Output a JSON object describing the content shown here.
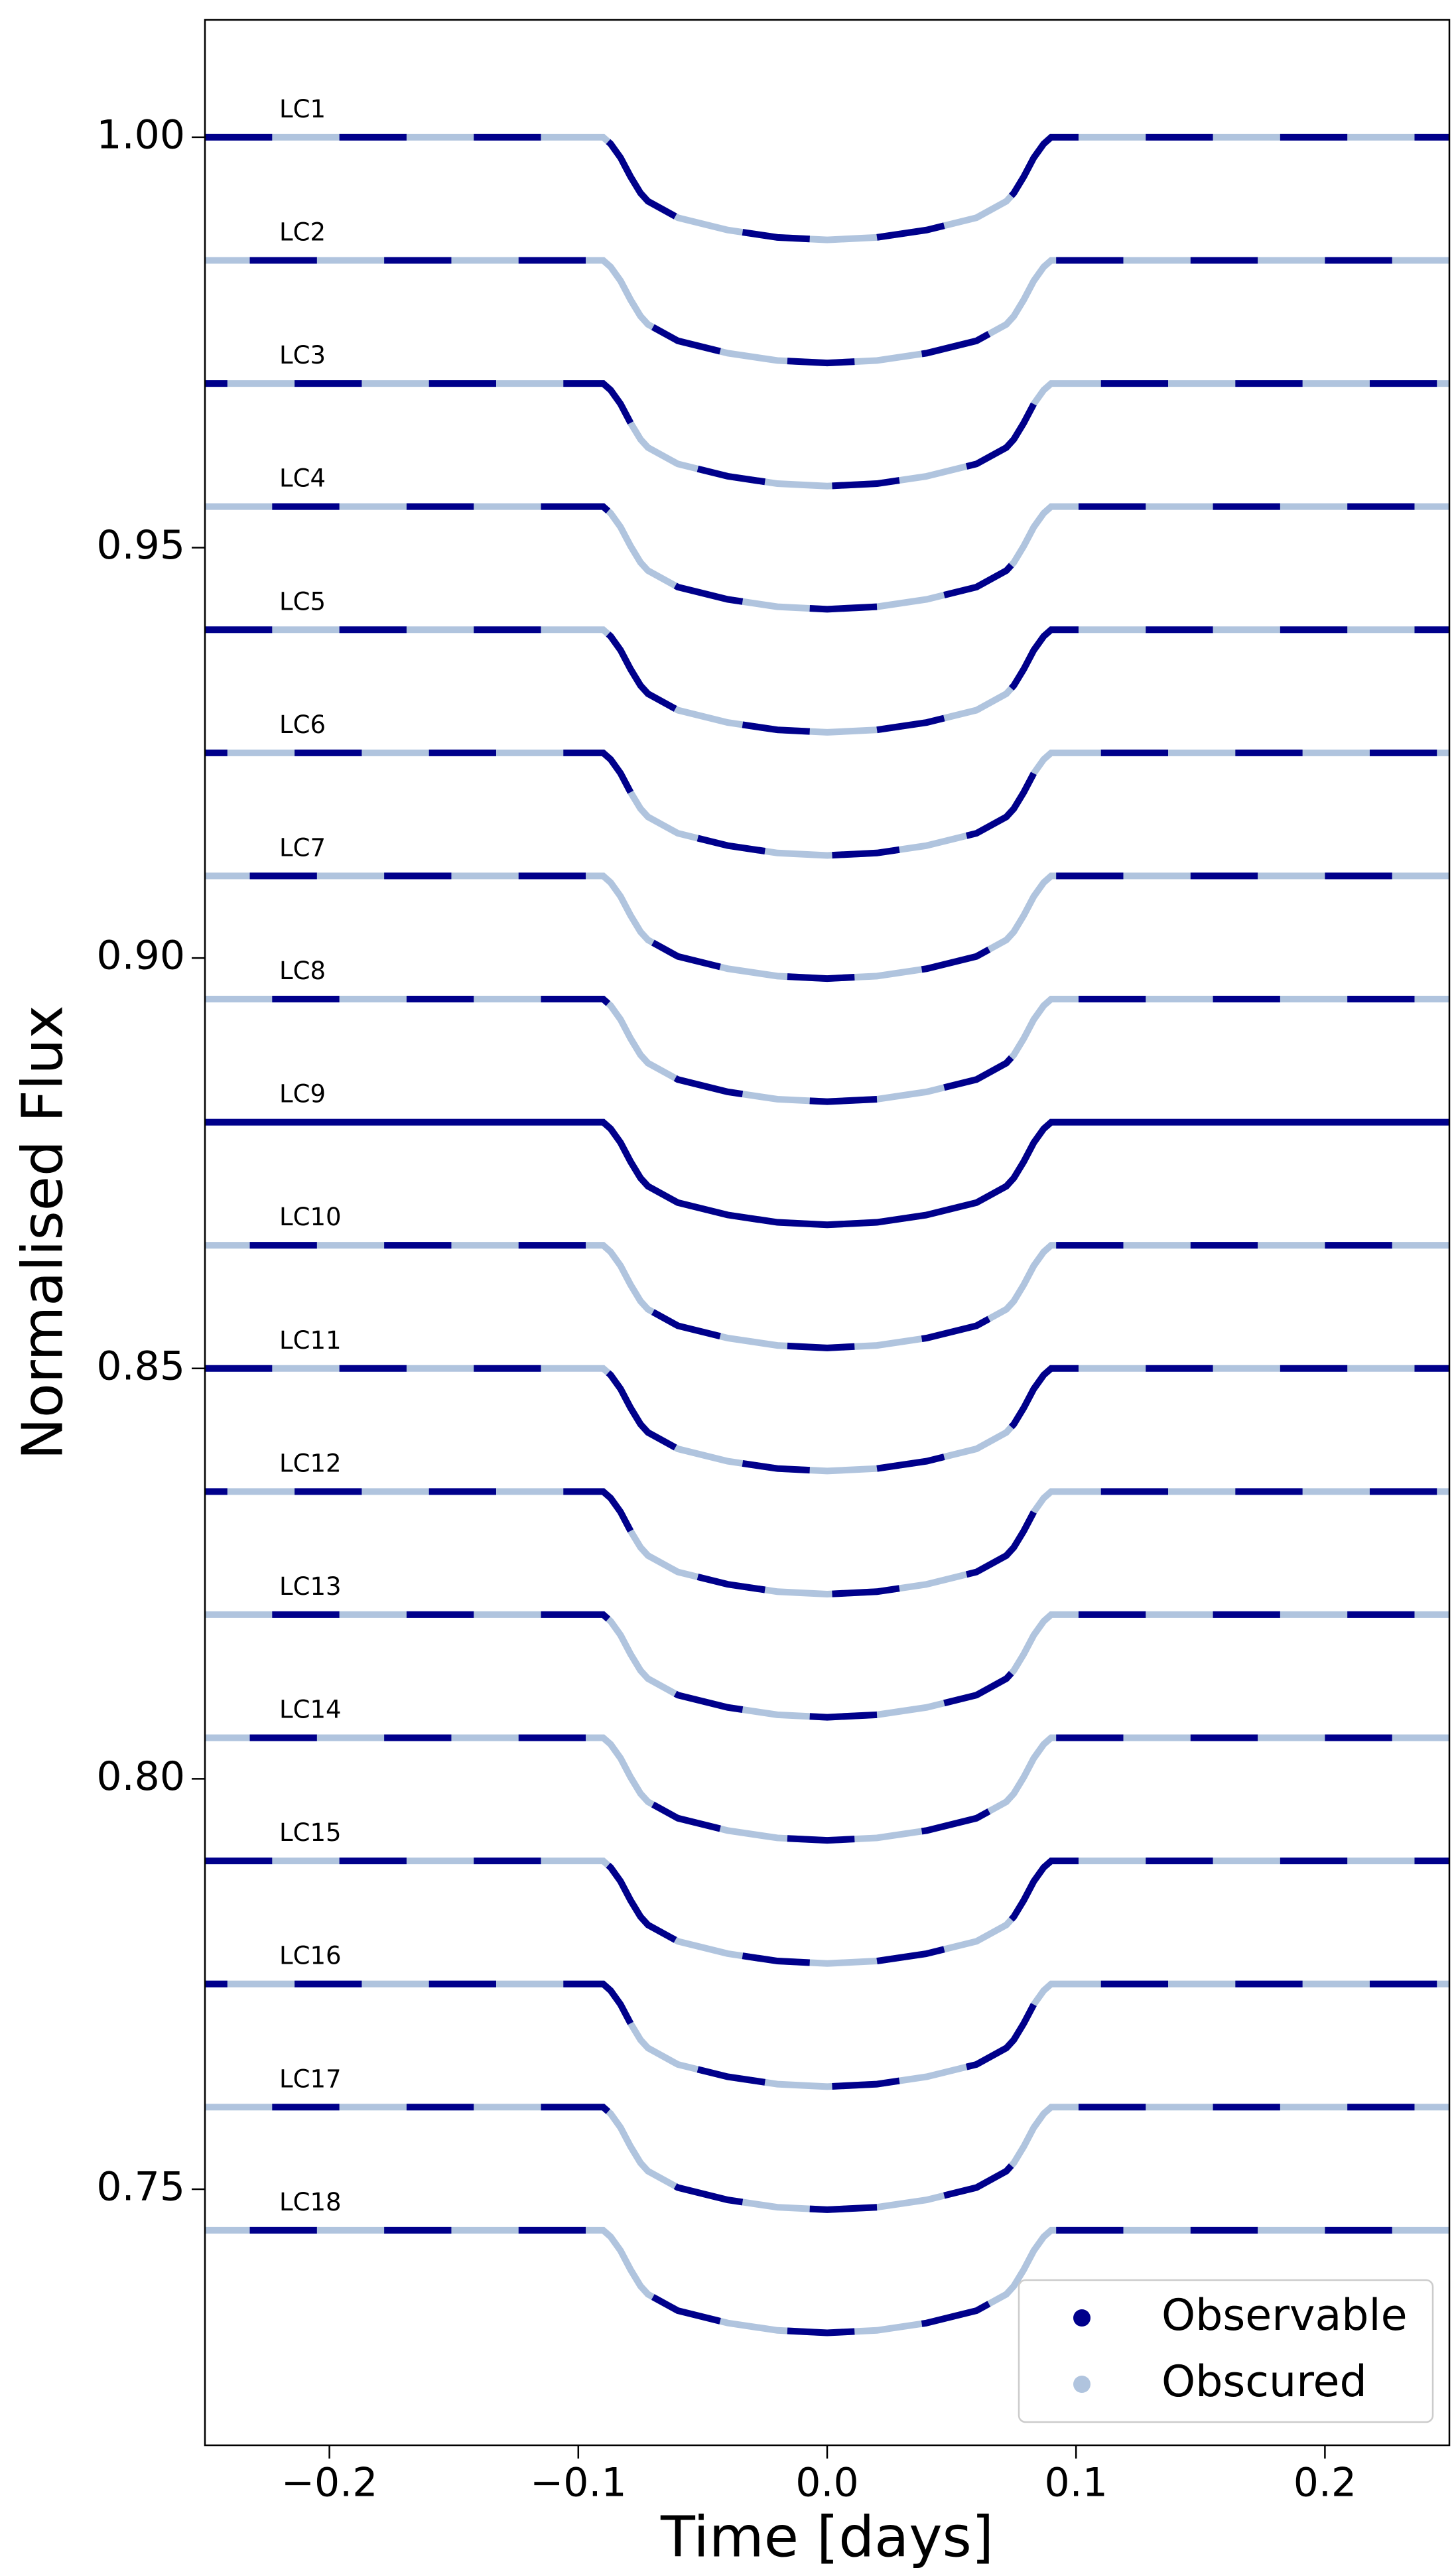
{
  "chart_data": {
    "type": "line",
    "xlabel": "Time [days]",
    "ylabel": "Normalised Flux",
    "xlim": [
      -0.25,
      0.25
    ],
    "ylim": [
      0.7188,
      1.0143
    ],
    "xticks": [
      {
        "value": -0.2,
        "label": "−0.2"
      },
      {
        "value": -0.1,
        "label": "−0.1"
      },
      {
        "value": 0.0,
        "label": "0.0"
      },
      0.1,
      0.2
    ],
    "yticks": [
      0.75,
      {
        "value": 0.8,
        "label": "0.80"
      },
      0.85,
      {
        "value": 0.9,
        "label": "0.90"
      },
      0.95,
      {
        "value": 1.0,
        "label": "1.00"
      }
    ],
    "legend": {
      "position": "lower right",
      "entries": [
        {
          "name": "Observable",
          "color": "#00008b"
        },
        {
          "name": "Obscured",
          "color": "#b0c4de"
        }
      ]
    },
    "x": [
      -0.25,
      -0.09,
      -0.087,
      -0.083,
      -0.079,
      -0.075,
      -0.072,
      -0.06,
      -0.04,
      -0.02,
      0,
      0.02,
      0.04,
      0.06,
      0.072,
      0.075,
      0.079,
      0.083,
      0.087,
      0.09,
      0.25
    ],
    "series": [
      {
        "name": "LC1",
        "values": [
          1,
          1,
          0.9992,
          0.9975,
          0.9952,
          0.9932,
          0.9922,
          0.9902,
          0.9887,
          0.9878,
          0.9875,
          0.9878,
          0.9887,
          0.9902,
          0.9922,
          0.9932,
          0.9952,
          0.9975,
          0.9992,
          1,
          1
        ],
        "observable": [
          [
            -0.25,
            -0.223
          ],
          [
            -0.196,
            -0.169
          ],
          [
            -0.142,
            -0.115
          ],
          [
            -0.088,
            -0.061
          ],
          [
            -0.034,
            -0.007
          ],
          [
            0.02,
            0.047
          ],
          [
            0.074,
            0.101
          ],
          [
            0.128,
            0.155
          ],
          [
            0.182,
            0.209
          ],
          [
            0.236,
            0.25
          ]
        ]
      },
      {
        "name": "LC2",
        "values": [
          0.985,
          0.985,
          0.9842,
          0.9825,
          0.9802,
          0.9782,
          0.9772,
          0.9752,
          0.9737,
          0.9728,
          0.9725,
          0.9728,
          0.9737,
          0.9752,
          0.9772,
          0.9782,
          0.9802,
          0.9825,
          0.9842,
          0.985,
          0.985
        ],
        "observable": [
          [
            -0.232,
            -0.205
          ],
          [
            -0.178,
            -0.151
          ],
          [
            -0.124,
            -0.097
          ],
          [
            -0.07,
            -0.043
          ],
          [
            -0.016,
            0.011
          ],
          [
            0.038,
            0.065
          ],
          [
            0.092,
            0.119
          ],
          [
            0.146,
            0.173
          ],
          [
            0.2,
            0.227
          ]
        ]
      },
      {
        "name": "LC3",
        "values": [
          0.97,
          0.97,
          0.9692,
          0.9675,
          0.9652,
          0.9632,
          0.9622,
          0.9602,
          0.9587,
          0.9578,
          0.9575,
          0.9578,
          0.9587,
          0.9602,
          0.9622,
          0.9632,
          0.9652,
          0.9675,
          0.9692,
          0.97,
          0.97
        ],
        "observable": [
          [
            -0.25,
            -0.241
          ],
          [
            -0.214,
            -0.187
          ],
          [
            -0.16,
            -0.133
          ],
          [
            -0.106,
            -0.079
          ],
          [
            -0.052,
            -0.025
          ],
          [
            0.002,
            0.029
          ],
          [
            0.056,
            0.083
          ],
          [
            0.11,
            0.137
          ],
          [
            0.164,
            0.191
          ],
          [
            0.218,
            0.245
          ]
        ]
      },
      {
        "name": "LC4",
        "values": [
          0.955,
          0.955,
          0.9542,
          0.9525,
          0.9502,
          0.9482,
          0.9472,
          0.9452,
          0.9437,
          0.9428,
          0.9425,
          0.9428,
          0.9437,
          0.9452,
          0.9472,
          0.9482,
          0.9502,
          0.9525,
          0.9542,
          0.955,
          0.955
        ],
        "observable": [
          [
            -0.223,
            -0.196
          ],
          [
            -0.169,
            -0.142
          ],
          [
            -0.115,
            -0.088
          ],
          [
            -0.061,
            -0.034
          ],
          [
            -0.007,
            0.02
          ],
          [
            0.047,
            0.074
          ],
          [
            0.101,
            0.128
          ],
          [
            0.155,
            0.182
          ],
          [
            0.209,
            0.236
          ]
        ]
      },
      {
        "name": "LC5",
        "values": [
          0.94,
          0.94,
          0.9392,
          0.9375,
          0.9352,
          0.9332,
          0.9322,
          0.9302,
          0.9287,
          0.9278,
          0.9275,
          0.9278,
          0.9287,
          0.9302,
          0.9322,
          0.9332,
          0.9352,
          0.9375,
          0.9392,
          0.94,
          0.94
        ],
        "observable": [
          [
            -0.25,
            -0.223
          ],
          [
            -0.196,
            -0.169
          ],
          [
            -0.142,
            -0.115
          ],
          [
            -0.088,
            -0.061
          ],
          [
            -0.034,
            -0.007
          ],
          [
            0.02,
            0.047
          ],
          [
            0.074,
            0.101
          ],
          [
            0.128,
            0.155
          ],
          [
            0.182,
            0.209
          ],
          [
            0.236,
            0.25
          ]
        ]
      },
      {
        "name": "LC6",
        "values": [
          0.925,
          0.925,
          0.9242,
          0.9225,
          0.9202,
          0.9182,
          0.9172,
          0.9152,
          0.9137,
          0.9128,
          0.9125,
          0.9128,
          0.9137,
          0.9152,
          0.9172,
          0.9182,
          0.9202,
          0.9225,
          0.9242,
          0.925,
          0.925
        ],
        "observable": [
          [
            -0.25,
            -0.241
          ],
          [
            -0.214,
            -0.187
          ],
          [
            -0.16,
            -0.133
          ],
          [
            -0.106,
            -0.079
          ],
          [
            -0.052,
            -0.025
          ],
          [
            0.002,
            0.029
          ],
          [
            0.056,
            0.083
          ],
          [
            0.11,
            0.137
          ],
          [
            0.164,
            0.191
          ],
          [
            0.218,
            0.245
          ]
        ]
      },
      {
        "name": "LC7",
        "values": [
          0.91,
          0.91,
          0.9092,
          0.9075,
          0.9052,
          0.9032,
          0.9022,
          0.9002,
          0.8987,
          0.8978,
          0.8975,
          0.8978,
          0.8987,
          0.9002,
          0.9022,
          0.9032,
          0.9052,
          0.9075,
          0.9092,
          0.91,
          0.91
        ],
        "observable": [
          [
            -0.232,
            -0.205
          ],
          [
            -0.178,
            -0.151
          ],
          [
            -0.124,
            -0.097
          ],
          [
            -0.07,
            -0.043
          ],
          [
            -0.016,
            0.011
          ],
          [
            0.038,
            0.065
          ],
          [
            0.092,
            0.119
          ],
          [
            0.146,
            0.173
          ],
          [
            0.2,
            0.227
          ]
        ]
      },
      {
        "name": "LC8",
        "values": [
          0.895,
          0.895,
          0.8942,
          0.8925,
          0.8902,
          0.8882,
          0.8872,
          0.8852,
          0.8837,
          0.8828,
          0.8825,
          0.8828,
          0.8837,
          0.8852,
          0.8872,
          0.8882,
          0.8902,
          0.8925,
          0.8942,
          0.895,
          0.895
        ],
        "observable": [
          [
            -0.223,
            -0.196
          ],
          [
            -0.169,
            -0.142
          ],
          [
            -0.115,
            -0.088
          ],
          [
            -0.061,
            -0.034
          ],
          [
            -0.007,
            0.02
          ],
          [
            0.047,
            0.074
          ],
          [
            0.101,
            0.128
          ],
          [
            0.155,
            0.182
          ],
          [
            0.209,
            0.236
          ]
        ]
      },
      {
        "name": "LC9",
        "values": [
          0.88,
          0.88,
          0.8792,
          0.8775,
          0.8752,
          0.8732,
          0.8722,
          0.8702,
          0.8687,
          0.8678,
          0.8675,
          0.8678,
          0.8687,
          0.8702,
          0.8722,
          0.8732,
          0.8752,
          0.8775,
          0.8792,
          0.88,
          0.88
        ],
        "observable": [
          [
            -0.25,
            0.25
          ]
        ]
      },
      {
        "name": "LC10",
        "values": [
          0.865,
          0.865,
          0.8642,
          0.8625,
          0.8602,
          0.8582,
          0.8572,
          0.8552,
          0.8537,
          0.8528,
          0.8525,
          0.8528,
          0.8537,
          0.8552,
          0.8572,
          0.8582,
          0.8602,
          0.8625,
          0.8642,
          0.865,
          0.865
        ],
        "observable": [
          [
            -0.232,
            -0.205
          ],
          [
            -0.178,
            -0.151
          ],
          [
            -0.124,
            -0.097
          ],
          [
            -0.07,
            -0.043
          ],
          [
            -0.016,
            0.011
          ],
          [
            0.038,
            0.065
          ],
          [
            0.092,
            0.119
          ],
          [
            0.146,
            0.173
          ],
          [
            0.2,
            0.227
          ]
        ]
      },
      {
        "name": "LC11",
        "values": [
          0.85,
          0.85,
          0.8492,
          0.8475,
          0.8452,
          0.8432,
          0.8422,
          0.8402,
          0.8387,
          0.8378,
          0.8375,
          0.8378,
          0.8387,
          0.8402,
          0.8422,
          0.8432,
          0.8452,
          0.8475,
          0.8492,
          0.85,
          0.85
        ],
        "observable": [
          [
            -0.25,
            -0.223
          ],
          [
            -0.196,
            -0.169
          ],
          [
            -0.142,
            -0.115
          ],
          [
            -0.088,
            -0.061
          ],
          [
            -0.034,
            -0.007
          ],
          [
            0.02,
            0.047
          ],
          [
            0.074,
            0.101
          ],
          [
            0.128,
            0.155
          ],
          [
            0.182,
            0.209
          ],
          [
            0.236,
            0.25
          ]
        ]
      },
      {
        "name": "LC12",
        "values": [
          0.835,
          0.835,
          0.8342,
          0.8325,
          0.8302,
          0.8282,
          0.8272,
          0.8252,
          0.8237,
          0.8228,
          0.8225,
          0.8228,
          0.8237,
          0.8252,
          0.8272,
          0.8282,
          0.8302,
          0.8325,
          0.8342,
          0.835,
          0.835
        ],
        "observable": [
          [
            -0.25,
            -0.241
          ],
          [
            -0.214,
            -0.187
          ],
          [
            -0.16,
            -0.133
          ],
          [
            -0.106,
            -0.079
          ],
          [
            -0.052,
            -0.025
          ],
          [
            0.002,
            0.029
          ],
          [
            0.056,
            0.083
          ],
          [
            0.11,
            0.137
          ],
          [
            0.164,
            0.191
          ],
          [
            0.218,
            0.245
          ]
        ]
      },
      {
        "name": "LC13",
        "values": [
          0.82,
          0.82,
          0.8192,
          0.8175,
          0.8152,
          0.8132,
          0.8122,
          0.8102,
          0.8087,
          0.8078,
          0.8075,
          0.8078,
          0.8087,
          0.8102,
          0.8122,
          0.8132,
          0.8152,
          0.8175,
          0.8192,
          0.82,
          0.82
        ],
        "observable": [
          [
            -0.223,
            -0.196
          ],
          [
            -0.169,
            -0.142
          ],
          [
            -0.115,
            -0.088
          ],
          [
            -0.061,
            -0.034
          ],
          [
            -0.007,
            0.02
          ],
          [
            0.047,
            0.074
          ],
          [
            0.101,
            0.128
          ],
          [
            0.155,
            0.182
          ],
          [
            0.209,
            0.236
          ]
        ]
      },
      {
        "name": "LC14",
        "values": [
          0.805,
          0.805,
          0.8042,
          0.8025,
          0.8002,
          0.7982,
          0.7972,
          0.7952,
          0.7937,
          0.7928,
          0.7925,
          0.7928,
          0.7937,
          0.7952,
          0.7972,
          0.7982,
          0.8002,
          0.8025,
          0.8042,
          0.805,
          0.805
        ],
        "observable": [
          [
            -0.232,
            -0.205
          ],
          [
            -0.178,
            -0.151
          ],
          [
            -0.124,
            -0.097
          ],
          [
            -0.07,
            -0.043
          ],
          [
            -0.016,
            0.011
          ],
          [
            0.038,
            0.065
          ],
          [
            0.092,
            0.119
          ],
          [
            0.146,
            0.173
          ],
          [
            0.2,
            0.227
          ]
        ]
      },
      {
        "name": "LC15",
        "values": [
          0.79,
          0.79,
          0.7892,
          0.7875,
          0.7852,
          0.7832,
          0.7822,
          0.7802,
          0.7787,
          0.7778,
          0.7775,
          0.7778,
          0.7787,
          0.7802,
          0.7822,
          0.7832,
          0.7852,
          0.7875,
          0.7892,
          0.79,
          0.79
        ],
        "observable": [
          [
            -0.25,
            -0.223
          ],
          [
            -0.196,
            -0.169
          ],
          [
            -0.142,
            -0.115
          ],
          [
            -0.088,
            -0.061
          ],
          [
            -0.034,
            -0.007
          ],
          [
            0.02,
            0.047
          ],
          [
            0.074,
            0.101
          ],
          [
            0.128,
            0.155
          ],
          [
            0.182,
            0.209
          ],
          [
            0.236,
            0.25
          ]
        ]
      },
      {
        "name": "LC16",
        "values": [
          0.775,
          0.775,
          0.7742,
          0.7725,
          0.7702,
          0.7682,
          0.7672,
          0.7652,
          0.7637,
          0.7628,
          0.7625,
          0.7628,
          0.7637,
          0.7652,
          0.7672,
          0.7682,
          0.7702,
          0.7725,
          0.7742,
          0.775,
          0.775
        ],
        "observable": [
          [
            -0.25,
            -0.241
          ],
          [
            -0.214,
            -0.187
          ],
          [
            -0.16,
            -0.133
          ],
          [
            -0.106,
            -0.079
          ],
          [
            -0.052,
            -0.025
          ],
          [
            0.002,
            0.029
          ],
          [
            0.056,
            0.083
          ],
          [
            0.11,
            0.137
          ],
          [
            0.164,
            0.191
          ],
          [
            0.218,
            0.245
          ]
        ]
      },
      {
        "name": "LC17",
        "values": [
          0.76,
          0.76,
          0.7592,
          0.7575,
          0.7552,
          0.7532,
          0.7522,
          0.7502,
          0.7487,
          0.7478,
          0.7475,
          0.7478,
          0.7487,
          0.7502,
          0.7522,
          0.7532,
          0.7552,
          0.7575,
          0.7592,
          0.76,
          0.76
        ],
        "observable": [
          [
            -0.223,
            -0.196
          ],
          [
            -0.169,
            -0.142
          ],
          [
            -0.115,
            -0.088
          ],
          [
            -0.061,
            -0.034
          ],
          [
            -0.007,
            0.02
          ],
          [
            0.047,
            0.074
          ],
          [
            0.101,
            0.128
          ],
          [
            0.155,
            0.182
          ],
          [
            0.209,
            0.236
          ]
        ]
      },
      {
        "name": "LC18",
        "values": [
          0.745,
          0.745,
          0.7442,
          0.7425,
          0.7402,
          0.7382,
          0.7372,
          0.7352,
          0.7337,
          0.7328,
          0.7325,
          0.7328,
          0.7337,
          0.7352,
          0.7372,
          0.7382,
          0.7402,
          0.7425,
          0.7442,
          0.745,
          0.745
        ],
        "observable": [
          [
            -0.232,
            -0.205
          ],
          [
            -0.178,
            -0.151
          ],
          [
            -0.124,
            -0.097
          ],
          [
            -0.07,
            -0.043
          ],
          [
            -0.016,
            0.011
          ],
          [
            0.038,
            0.065
          ],
          [
            0.092,
            0.119
          ],
          [
            0.146,
            0.173
          ],
          [
            0.2,
            0.227
          ]
        ]
      }
    ]
  }
}
